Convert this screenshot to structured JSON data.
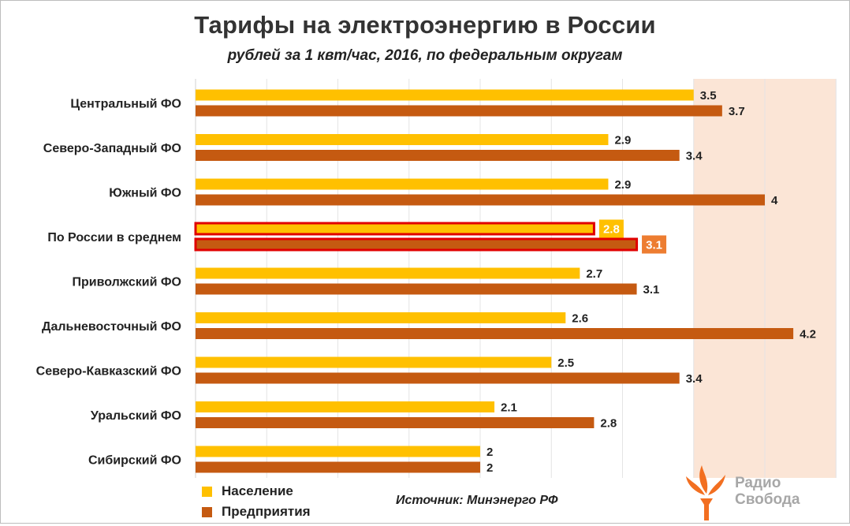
{
  "chart_data": {
    "type": "bar",
    "orientation": "horizontal",
    "title": "Тарифы на электроэнергию в России",
    "subtitle": "рублей за 1 квт/час,  2016, по федеральным  округам",
    "categories": [
      "Центральный ФО",
      "Северо-Западный  ФО",
      "Южный ФО",
      "По России в среднем",
      "Приволжский ФО",
      "Дальневосточный  ФО",
      "Северо-Кавказский  ФО",
      "Уральский  ФО",
      "Сибирский ФО"
    ],
    "series": [
      {
        "name": "Население",
        "color": "#ffc000",
        "values": [
          3.5,
          2.9,
          2.9,
          2.8,
          2.7,
          2.6,
          2.5,
          2.1,
          2
        ]
      },
      {
        "name": "Предприятия",
        "color": "#c55a11",
        "values": [
          3.7,
          3.4,
          4,
          3.1,
          3.1,
          4.2,
          3.4,
          2.8,
          2
        ]
      }
    ],
    "highlight_category": "По России в среднем",
    "highlight_border_color": "#e00000",
    "highlight_label_colors": [
      "#ffc000",
      "#ed7d31"
    ],
    "xlim": [
      0,
      4.5
    ],
    "x_gridline_step": 0.5,
    "x_tick_labels_visible": false,
    "shaded_range": [
      3.5,
      4.5
    ],
    "shaded_color": "#fbe5d6",
    "grid": true,
    "legend_position": "bottom-left"
  },
  "source_text": "Источник: Минэнерго РФ",
  "logo": {
    "line1": "Радио",
    "line2": "Свобода",
    "icon": "torch-flame-icon",
    "color": "#f26f21"
  }
}
